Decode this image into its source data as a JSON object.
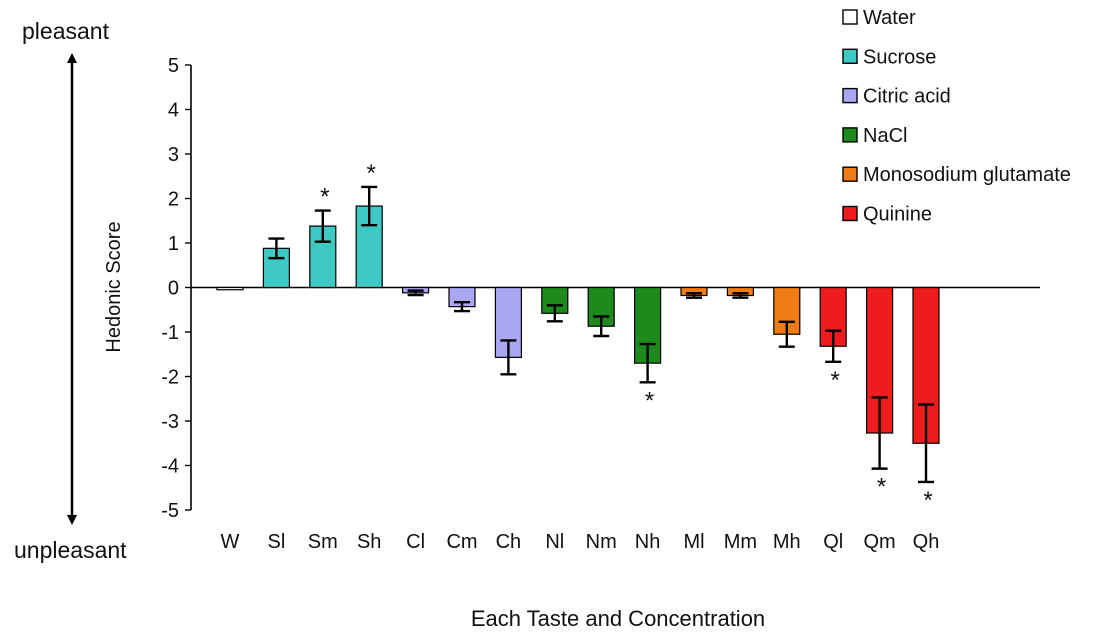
{
  "chart_data": {
    "type": "bar",
    "xlabel": "Each Taste and Concentration",
    "ylabel": "Hedonic Score",
    "top_annotation": "pleasant",
    "bottom_annotation": "unpleasant",
    "ylim": [
      -5,
      5
    ],
    "yticks": [
      5,
      4,
      3,
      2,
      1,
      0,
      -1,
      -2,
      -3,
      -4,
      -5
    ],
    "grid": false,
    "legend_position": "top-right",
    "legend": [
      {
        "name": "Water",
        "color": "#ffffff"
      },
      {
        "name": "Sucrose",
        "color": "#3ec9c4"
      },
      {
        "name": "Citric acid",
        "color": "#a9a6f2"
      },
      {
        "name": "NaCl",
        "color": "#1e8a1e"
      },
      {
        "name": "Monosodium glutamate",
        "color": "#f07c16"
      },
      {
        "name": "Quinine",
        "color": "#ee1c1c"
      }
    ],
    "bars": [
      {
        "label": "W",
        "group": 0,
        "value": -0.05,
        "error": 0.0,
        "significant": false
      },
      {
        "label": "Sl",
        "group": 1,
        "value": 0.88,
        "error": 0.22,
        "significant": false
      },
      {
        "label": "Sm",
        "group": 1,
        "value": 1.38,
        "error": 0.35,
        "significant": true
      },
      {
        "label": "Sh",
        "group": 1,
        "value": 1.83,
        "error": 0.43,
        "significant": true
      },
      {
        "label": "Cl",
        "group": 2,
        "value": -0.12,
        "error": 0.05,
        "significant": false
      },
      {
        "label": "Cm",
        "group": 2,
        "value": -0.43,
        "error": 0.1,
        "significant": false
      },
      {
        "label": "Ch",
        "group": 3,
        "value": -1.57,
        "error": 0.38,
        "significant": false,
        "fill_group": 2
      },
      {
        "label": "Nl",
        "group": 3,
        "value": -0.58,
        "error": 0.18,
        "significant": false
      },
      {
        "label": "Nm",
        "group": 3,
        "value": -0.87,
        "error": 0.22,
        "significant": false
      },
      {
        "label": "Nh",
        "group": 3,
        "value": -1.7,
        "error": 0.43,
        "significant": true
      },
      {
        "label": "Ml",
        "group": 4,
        "value": -0.18,
        "error": 0.05,
        "significant": false
      },
      {
        "label": "Mm",
        "group": 4,
        "value": -0.18,
        "error": 0.05,
        "significant": false
      },
      {
        "label": "Mh",
        "group": 4,
        "value": -1.05,
        "error": 0.28,
        "significant": false
      },
      {
        "label": "Ql",
        "group": 5,
        "value": -1.32,
        "error": 0.35,
        "significant": true
      },
      {
        "label": "Qm",
        "group": 5,
        "value": -3.27,
        "error": 0.8,
        "significant": true
      },
      {
        "label": "Qh",
        "group": 5,
        "value": -3.5,
        "error": 0.87,
        "significant": true
      }
    ],
    "significance_marker": "*"
  }
}
